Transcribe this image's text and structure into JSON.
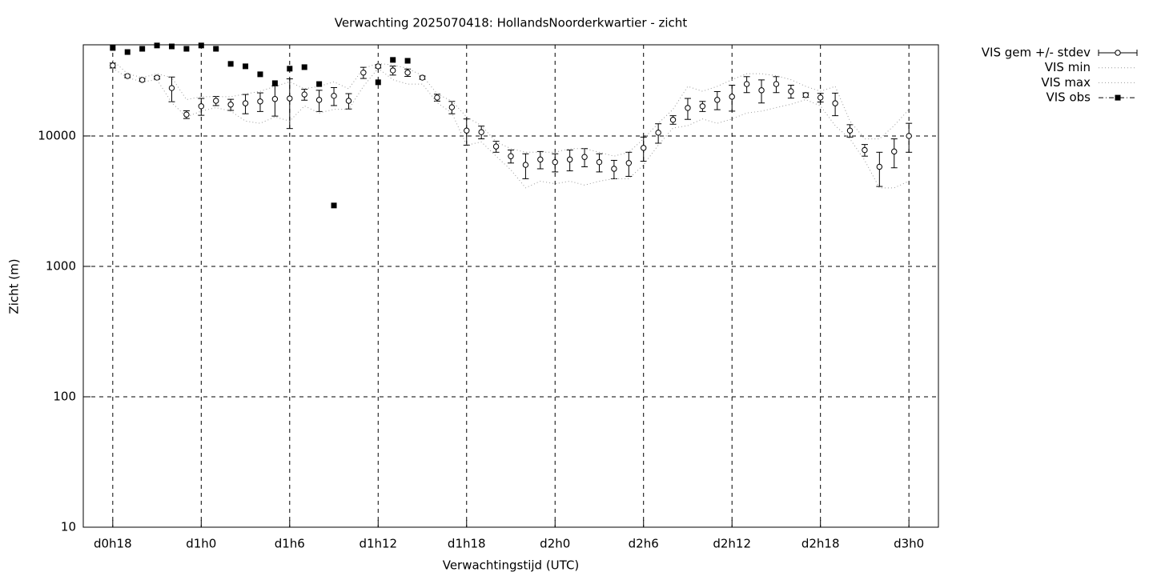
{
  "chart_data": {
    "type": "errorbar",
    "title": "Verwachting 2025070418: HollandsNoorderkwartier - zicht",
    "x_label": "Verwachtingstijd (UTC)",
    "y_label": "Zicht (m)",
    "y_log": true,
    "grid": true,
    "legend": "outside-top-right",
    "xlim": [
      16,
      74
    ],
    "ylim": [
      10,
      50000
    ],
    "xticks": [
      {
        "value": 18,
        "label": "d0h18"
      },
      {
        "value": 24,
        "label": "d1h0"
      },
      {
        "value": 30,
        "label": "d1h6"
      },
      {
        "value": 36,
        "label": "d1h12"
      },
      {
        "value": 42,
        "label": "d1h18"
      },
      {
        "value": 48,
        "label": "d2h0"
      },
      {
        "value": 54,
        "label": "d2h6"
      },
      {
        "value": 60,
        "label": "d2h12"
      },
      {
        "value": 66,
        "label": "d2h18"
      },
      {
        "value": 72,
        "label": "d3h0"
      }
    ],
    "yticks": [
      10,
      100,
      1000,
      10000
    ],
    "x": [
      18,
      19,
      20,
      21,
      22,
      23,
      24,
      25,
      26,
      27,
      28,
      29,
      30,
      31,
      32,
      33,
      34,
      35,
      36,
      37,
      38,
      39,
      40,
      41,
      42,
      43,
      44,
      45,
      46,
      47,
      48,
      49,
      50,
      51,
      52,
      53,
      54,
      55,
      56,
      57,
      58,
      59,
      60,
      61,
      62,
      63,
      64,
      65,
      66,
      67,
      68,
      69,
      70,
      71,
      72
    ],
    "series": [
      {
        "name": "VIS gem +/- stdev",
        "color": "#000000",
        "style": "errorbar",
        "values": [
          34700,
          28800,
          26900,
          28000,
          23300,
          14600,
          16900,
          18600,
          17400,
          17800,
          18400,
          19200,
          19400,
          20800,
          18900,
          20300,
          18600,
          30600,
          34200,
          31800,
          30600,
          28000,
          19700,
          16600,
          11000,
          10700,
          8300,
          7000,
          6000,
          6600,
          6300,
          6600,
          6900,
          6300,
          5600,
          6200,
          8100,
          10600,
          13300,
          16400,
          16900,
          18900,
          20000,
          25000,
          22400,
          25000,
          22000,
          20600,
          19700,
          17800,
          11000,
          7800,
          5800,
          7600,
          10000
        ],
        "errors": [
          1500,
          800,
          700,
          700,
          5000,
          1000,
          2500,
          1500,
          1700,
          3000,
          3000,
          5000,
          8000,
          2000,
          3500,
          3200,
          2500,
          3000,
          1000,
          2500,
          2000,
          800,
          1200,
          1800,
          2500,
          1200,
          800,
          800,
          1300,
          1000,
          1000,
          1200,
          1100,
          1000,
          900,
          1300,
          1700,
          1800,
          1000,
          3000,
          1500,
          3000,
          4500,
          3500,
          4500,
          3500,
          2500,
          800,
          1500,
          3500,
          1200,
          800,
          1700,
          1900,
          2500
        ]
      },
      {
        "name": "VIS min",
        "color": "#999999",
        "style": "dotted",
        "values": [
          33000,
          28000,
          26000,
          27000,
          18000,
          14000,
          15500,
          16500,
          15500,
          13000,
          12500,
          14000,
          13000,
          17000,
          15000,
          16000,
          16000,
          24000,
          33000,
          27000,
          25000,
          25000,
          18000,
          15000,
          8500,
          9000,
          7000,
          5500,
          4000,
          4500,
          4300,
          4500,
          4200,
          4500,
          4700,
          4700,
          6000,
          8500,
          11500,
          12000,
          13500,
          12500,
          13500,
          15000,
          15500,
          16500,
          17500,
          19000,
          17000,
          12000,
          9500,
          6500,
          4000,
          4000,
          4500
        ]
      },
      {
        "name": "VIS max",
        "color": "#999999",
        "style": "dotted",
        "values": [
          38000,
          30000,
          28000,
          30000,
          28000,
          19000,
          20000,
          20000,
          20000,
          21000,
          22000,
          24000,
          26000,
          23000,
          24000,
          26000,
          23000,
          33000,
          36000,
          35000,
          33000,
          29000,
          21000,
          18500,
          14000,
          12000,
          9000,
          8000,
          7500,
          7500,
          7500,
          8000,
          8000,
          7500,
          7000,
          7500,
          9500,
          12500,
          16000,
          24000,
          22000,
          24000,
          27000,
          30000,
          30000,
          29000,
          27000,
          24000,
          22000,
          24000,
          13000,
          9500,
          9500,
          12000,
          16000
        ]
      },
      {
        "name": "VIS obs",
        "color": "#000000",
        "style": "squares",
        "values": [
          47300,
          44000,
          46600,
          49400,
          48600,
          46600,
          49400,
          46600,
          35700,
          34200,
          29700,
          25400,
          32800,
          33700,
          25000,
          2930,
          null,
          null,
          25800,
          38300,
          37700,
          null,
          null,
          null,
          null,
          null,
          null,
          null,
          null,
          null,
          null,
          null,
          null,
          null,
          null,
          null,
          null,
          null,
          null,
          null,
          null,
          null,
          null,
          null,
          null,
          null,
          null,
          null,
          null,
          null,
          null,
          null,
          null,
          null,
          null
        ]
      }
    ]
  }
}
